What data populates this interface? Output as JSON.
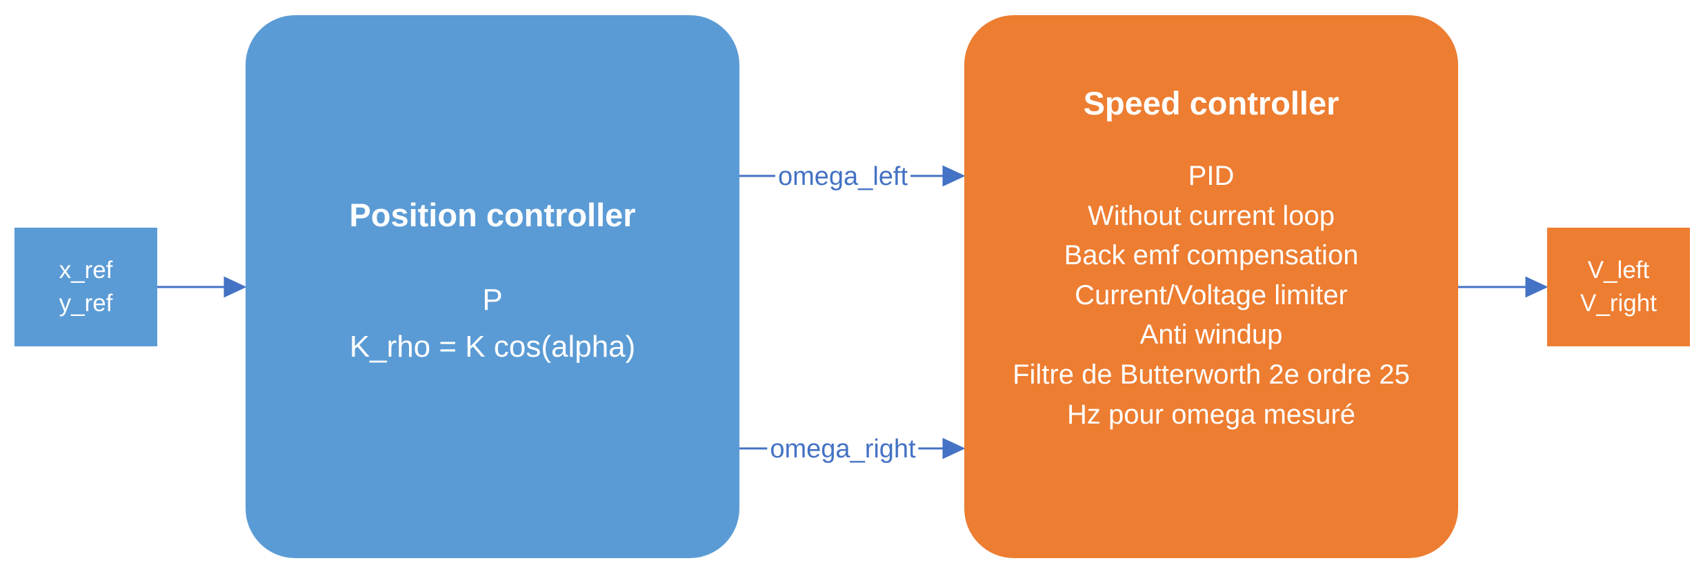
{
  "input": {
    "lines": [
      "x_ref",
      "y_ref"
    ]
  },
  "position_controller": {
    "title": "Position controller",
    "lines": [
      "P",
      "K_rho = K cos(alpha)"
    ]
  },
  "signals": {
    "omega_left": "omega_left",
    "omega_right": "omega_right"
  },
  "speed_controller": {
    "title": "Speed controller",
    "lines": [
      "PID",
      "Without current loop",
      "Back emf compensation",
      "Current/Voltage limiter",
      "Anti windup",
      "Filtre de Butterworth 2e ordre 25",
      "Hz pour omega mesuré"
    ]
  },
  "output": {
    "lines": [
      "V_left",
      "V_right"
    ]
  },
  "colors": {
    "blue_box": "#5b9bd5",
    "orange_box": "#ed7d31",
    "arrow": "#4472c4",
    "text_on_box": "#ffffff"
  }
}
